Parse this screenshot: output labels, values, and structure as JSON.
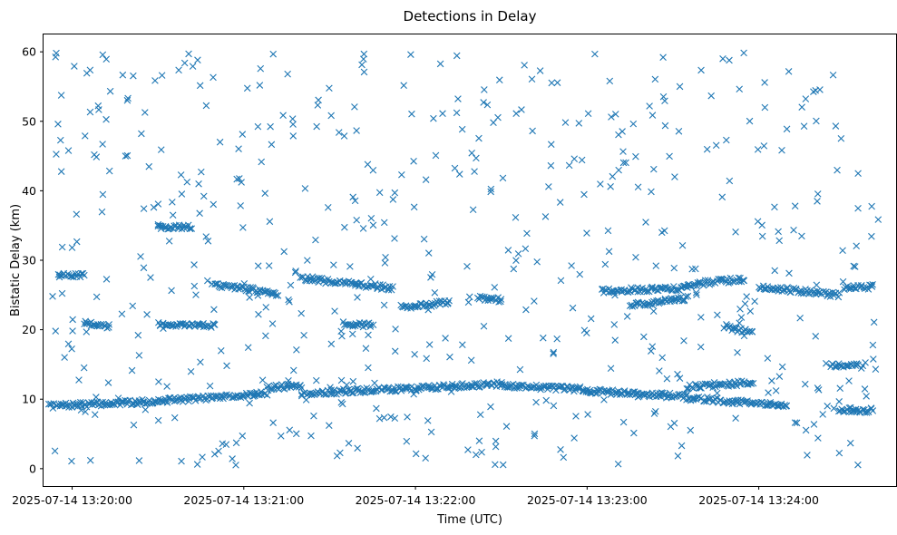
{
  "chart_data": {
    "type": "scatter",
    "title": "Detections in Delay",
    "xlabel": "Time (UTC)",
    "ylabel": "Bistatic Delay (km)",
    "xlim": [
      "2025-07-14 13:19:50",
      "2025-07-14 13:24:48"
    ],
    "ylim": [
      -2.5,
      62.5
    ],
    "x_ticks": [
      "2025-07-14 13:20:00",
      "2025-07-14 13:21:00",
      "2025-07-14 13:22:00",
      "2025-07-14 13:23:00",
      "2025-07-14 13:24:00"
    ],
    "y_ticks": [
      0,
      10,
      20,
      30,
      40,
      50,
      60
    ],
    "marker": "x",
    "color": "#1f77b4",
    "grid": false,
    "series": [
      {
        "tracks": [
          {
            "t0": "2025-07-14 13:19:52",
            "t1": "2025-07-14 13:20:25",
            "y0": 9.0,
            "y1": 9.6
          },
          {
            "t0": "2025-07-14 13:20:25",
            "t1": "2025-07-14 13:21:08",
            "y0": 9.6,
            "y1": 10.8
          },
          {
            "t0": "2025-07-14 13:21:08",
            "t1": "2025-07-14 13:21:20",
            "y0": 11.6,
            "y1": 12.0
          },
          {
            "t0": "2025-07-14 13:21:20",
            "t1": "2025-07-14 13:22:30",
            "y0": 10.8,
            "y1": 12.2
          },
          {
            "t0": "2025-07-14 13:22:30",
            "t1": "2025-07-14 13:23:00",
            "y0": 12.0,
            "y1": 11.4
          },
          {
            "t0": "2025-07-14 13:23:00",
            "t1": "2025-07-14 13:23:35",
            "y0": 11.2,
            "y1": 10.4
          },
          {
            "t0": "2025-07-14 13:23:35",
            "t1": "2025-07-14 13:23:58",
            "y0": 11.8,
            "y1": 12.4
          },
          {
            "t0": "2025-07-14 13:23:35",
            "t1": "2025-07-14 13:24:10",
            "y0": 10.2,
            "y1": 9.0
          },
          {
            "t0": "2025-07-14 13:24:28",
            "t1": "2025-07-14 13:24:40",
            "y0": 8.4,
            "y1": 8.4
          },
          {
            "t0": "2025-07-14 13:19:55",
            "t1": "2025-07-14 13:20:04",
            "y0": 27.8,
            "y1": 27.8
          },
          {
            "t0": "2025-07-14 13:20:04",
            "t1": "2025-07-14 13:20:13",
            "y0": 21.0,
            "y1": 20.5
          },
          {
            "t0": "2025-07-14 13:20:30",
            "t1": "2025-07-14 13:20:42",
            "y0": 34.8,
            "y1": 34.8
          },
          {
            "t0": "2025-07-14 13:20:30",
            "t1": "2025-07-14 13:20:50",
            "y0": 20.8,
            "y1": 20.6
          },
          {
            "t0": "2025-07-14 13:20:50",
            "t1": "2025-07-14 13:21:12",
            "y0": 26.5,
            "y1": 25.2
          },
          {
            "t0": "2025-07-14 13:21:20",
            "t1": "2025-07-14 13:21:52",
            "y0": 27.4,
            "y1": 26.0
          },
          {
            "t0": "2025-07-14 13:21:35",
            "t1": "2025-07-14 13:21:45",
            "y0": 20.9,
            "y1": 20.6
          },
          {
            "t0": "2025-07-14 13:21:55",
            "t1": "2025-07-14 13:22:12",
            "y0": 23.3,
            "y1": 23.9
          },
          {
            "t0": "2025-07-14 13:22:22",
            "t1": "2025-07-14 13:22:30",
            "y0": 24.6,
            "y1": 24.3
          },
          {
            "t0": "2025-07-14 13:23:05",
            "t1": "2025-07-14 13:23:35",
            "y0": 25.6,
            "y1": 26.0
          },
          {
            "t0": "2025-07-14 13:23:15",
            "t1": "2025-07-14 13:23:35",
            "y0": 23.5,
            "y1": 24.5
          },
          {
            "t0": "2025-07-14 13:23:35",
            "t1": "2025-07-14 13:23:55",
            "y0": 26.5,
            "y1": 27.3
          },
          {
            "t0": "2025-07-14 13:23:48",
            "t1": "2025-07-14 13:23:58",
            "y0": 20.5,
            "y1": 19.5
          },
          {
            "t0": "2025-07-14 13:24:00",
            "t1": "2025-07-14 13:24:28",
            "y0": 26.2,
            "y1": 25.0
          },
          {
            "t0": "2025-07-14 13:24:30",
            "t1": "2025-07-14 13:24:40",
            "y0": 26.0,
            "y1": 26.2
          },
          {
            "t0": "2025-07-14 13:24:25",
            "t1": "2025-07-14 13:24:35",
            "y0": 14.8,
            "y1": 14.8
          }
        ],
        "background": {
          "count": 560,
          "y_range": [
            0.5,
            59.9
          ],
          "seed": 7
        }
      }
    ]
  }
}
